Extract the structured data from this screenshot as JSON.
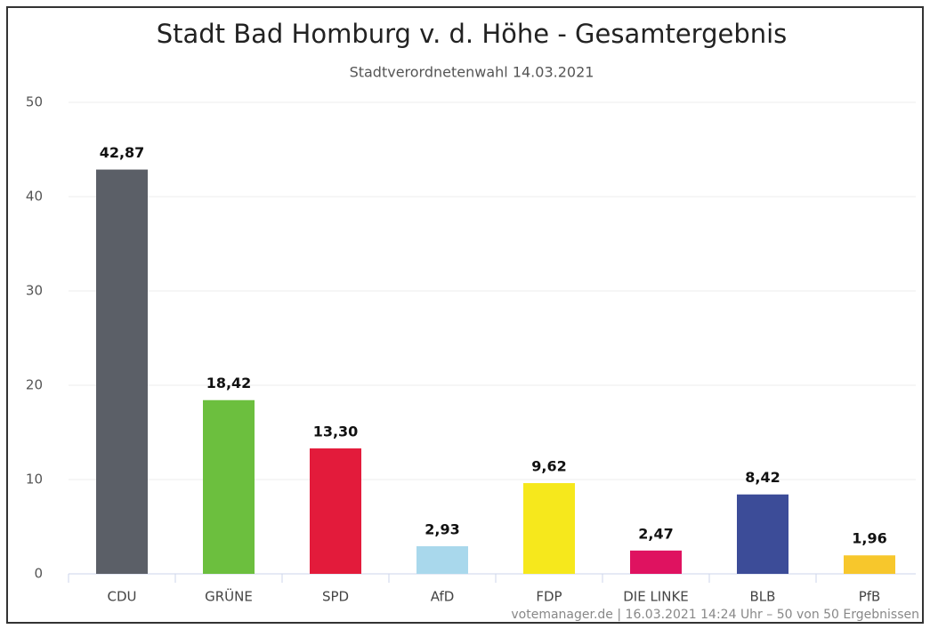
{
  "chart_data": {
    "type": "bar",
    "title": "Stadt Bad Homburg v. d. Höhe - Gesamtergebnis",
    "subtitle": "Stadtverordnetenwahl 14.03.2021",
    "categories": [
      "CDU",
      "GRÜNE",
      "SPD",
      "AfD",
      "FDP",
      "DIE LINKE",
      "BLB",
      "PfB"
    ],
    "values": [
      42.87,
      18.42,
      13.3,
      2.93,
      9.62,
      2.47,
      8.42,
      1.96
    ],
    "value_labels": [
      "42,87",
      "18,42",
      "13,30",
      "2,93",
      "9,62",
      "2,47",
      "8,42",
      "1,96"
    ],
    "colors": [
      "#5b5f67",
      "#6cbf3e",
      "#e31b3b",
      "#a9d8ec",
      "#f6e81c",
      "#df1260",
      "#3c4c98",
      "#f7c72c"
    ],
    "ylim": [
      0,
      50
    ],
    "yticks": [
      0,
      10,
      20,
      30,
      40,
      50
    ],
    "grid": true,
    "credit": "votemanager.de | 16.03.2021 14:24 Uhr – 50 von 50 Ergebnissen"
  }
}
